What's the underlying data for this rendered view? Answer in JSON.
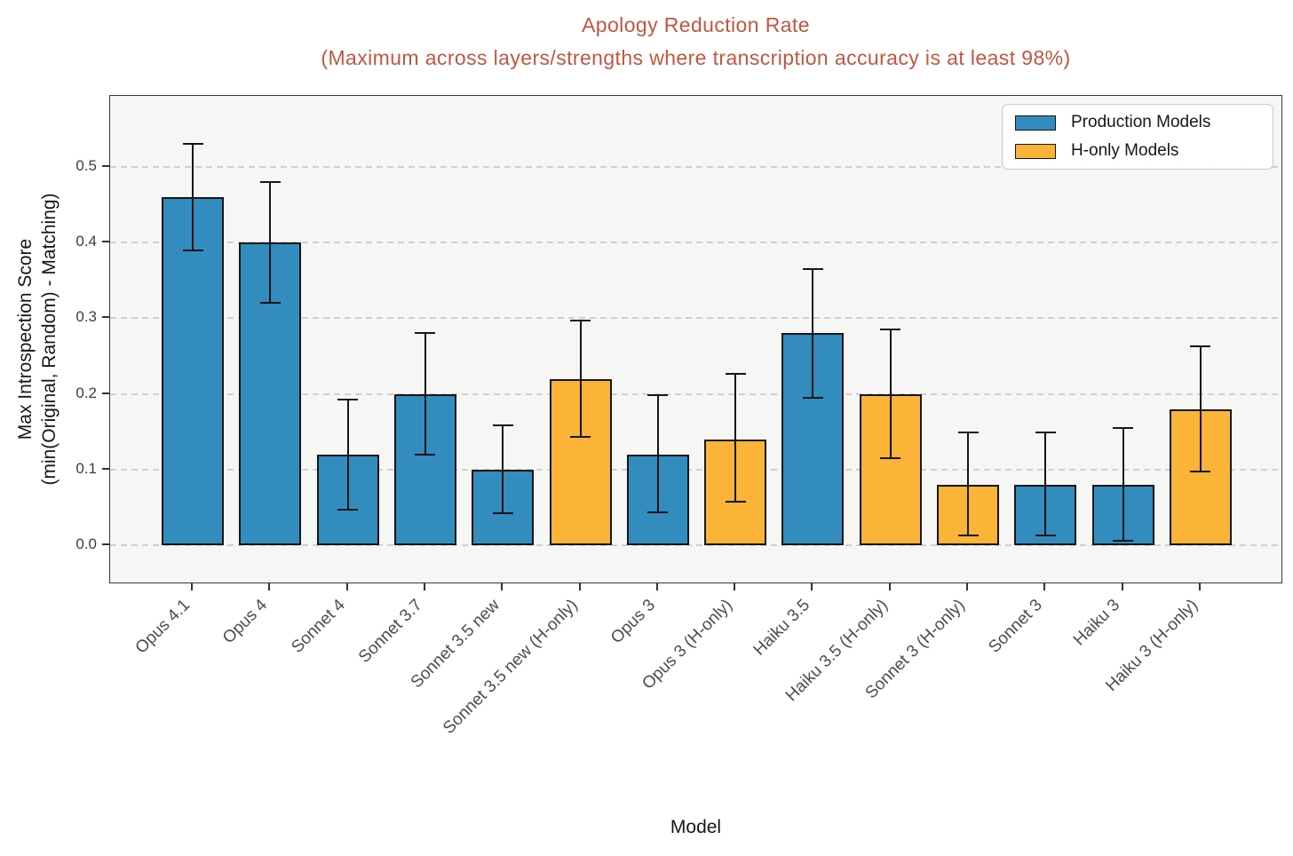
{
  "title": {
    "line1": "Apology Reduction Rate",
    "line2": "(Maximum across layers/strengths where transcription accuracy is at least 98%)"
  },
  "axes": {
    "x_label": "Model",
    "y_label_line1": "Max Introspection Score",
    "y_label_line2": "(min(Original, Random) - Matching)",
    "y_ticks": [
      "0.0",
      "0.1",
      "0.2",
      "0.3",
      "0.4",
      "0.5"
    ]
  },
  "legend": {
    "items": [
      {
        "label": "Production Models",
        "color": "#338CBE",
        "group": "production"
      },
      {
        "label": "H-only Models",
        "color": "#FBB437",
        "group": "h_only"
      }
    ]
  },
  "colors": {
    "production": "#338CBE",
    "h_only": "#FBB437",
    "title": "#BF5640",
    "bar_edge": "#161616",
    "plot_background": "#f6f6f5",
    "grid": "#cfcfcf"
  },
  "chart_data": {
    "type": "bar",
    "title": "Apology Reduction Rate (Maximum across layers/strengths where transcription accuracy is at least 98%)",
    "xlabel": "Model",
    "ylabel": "Max Introspection Score (min(Original, Random) - Matching)",
    "ylim": [
      -0.052,
      0.594
    ],
    "grid": "horizontal-dashed",
    "legend_position": "upper right",
    "gridline_values": [
      0.0,
      0.1,
      0.2,
      0.3,
      0.4,
      0.5
    ],
    "categories": [
      "Opus 4.1",
      "Opus 4",
      "Sonnet 4",
      "Sonnet 3.7",
      "Sonnet 3.5 new",
      "Sonnet 3.5 new (H-only)",
      "Opus 3",
      "Opus 3 (H-only)",
      "Haiku 3.5",
      "Haiku 3.5 (H-only)",
      "Sonnet 3 (H-only)",
      "Sonnet 3",
      "Haiku 3",
      "Haiku 3 (H-only)"
    ],
    "values": [
      0.46,
      0.4,
      0.12,
      0.2,
      0.1,
      0.22,
      0.12,
      0.14,
      0.28,
      0.2,
      0.08,
      0.08,
      0.08,
      0.18
    ],
    "error_low": [
      0.39,
      0.32,
      0.047,
      0.12,
      0.042,
      0.143,
      0.043,
      0.057,
      0.195,
      0.115,
      0.013,
      0.013,
      0.006,
      0.097
    ],
    "error_high": [
      0.53,
      0.48,
      0.192,
      0.28,
      0.158,
      0.297,
      0.198,
      0.226,
      0.365,
      0.285,
      0.149,
      0.149,
      0.155,
      0.263
    ],
    "groups": [
      "production",
      "production",
      "production",
      "production",
      "production",
      "h_only",
      "production",
      "h_only",
      "production",
      "h_only",
      "h_only",
      "production",
      "production",
      "h_only"
    ]
  }
}
